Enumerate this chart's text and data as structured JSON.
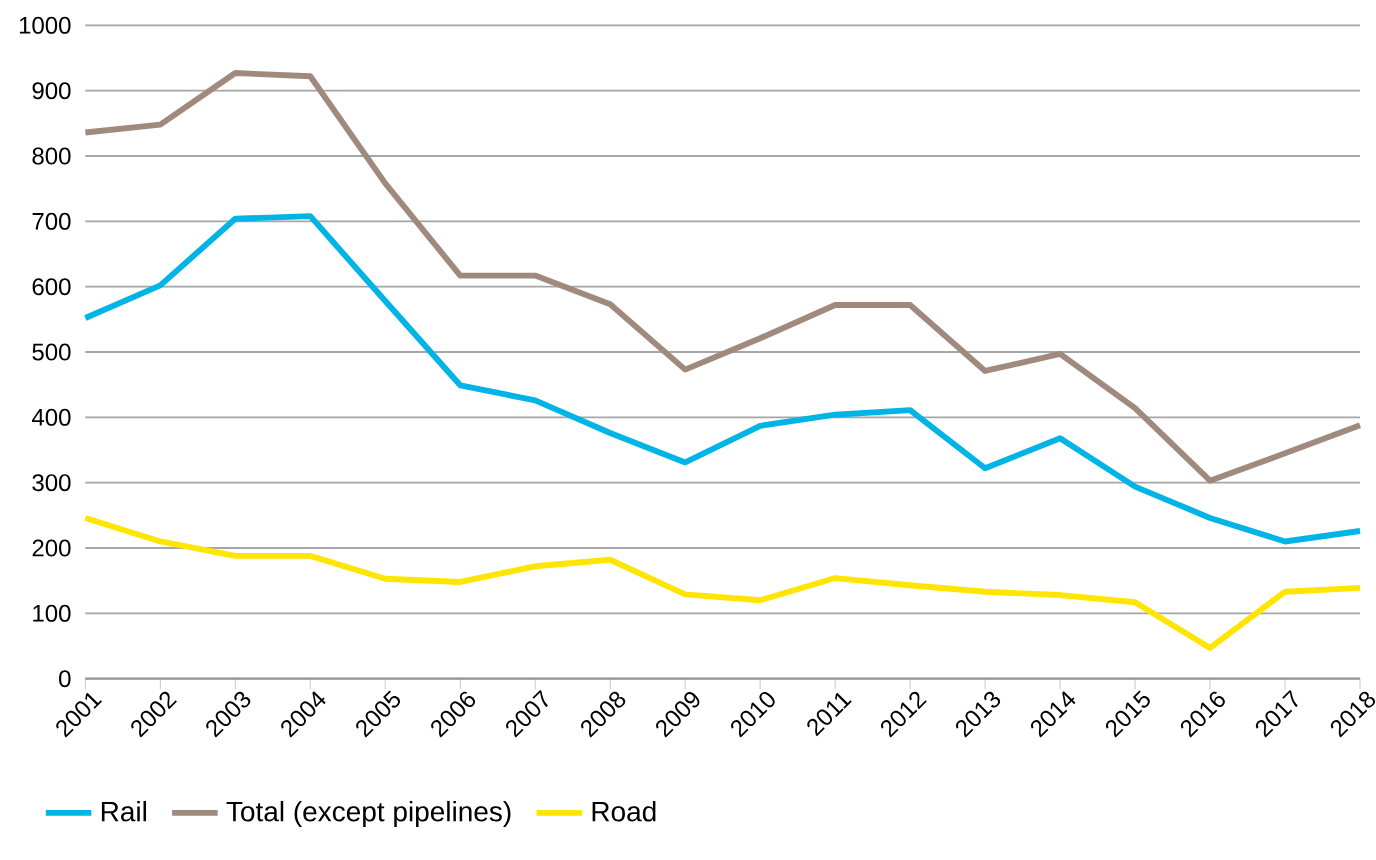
{
  "chart_data": {
    "type": "line",
    "categories": [
      "2001",
      "2002",
      "2003",
      "2004",
      "2005",
      "2006",
      "2007",
      "2008",
      "2009",
      "2010",
      "2011",
      "2012",
      "2013",
      "2014",
      "2015",
      "2016",
      "2017",
      "2018"
    ],
    "series": [
      {
        "name": "Rail",
        "color": "#00b5e6",
        "values": [
          552,
          602,
          704,
          708,
          578,
          449,
          426,
          376,
          331,
          387,
          404,
          411,
          322,
          368,
          294,
          246,
          210,
          226
        ]
      },
      {
        "name": "Total (except pipelines)",
        "color": "#a08a7e",
        "values": [
          836,
          848,
          927,
          922,
          758,
          617,
          617,
          573,
          473,
          521,
          572,
          572,
          471,
          497,
          414,
          303,
          345,
          388
        ]
      },
      {
        "name": "Road",
        "color": "#ffe500",
        "values": [
          246,
          210,
          188,
          188,
          153,
          148,
          172,
          182,
          129,
          120,
          154,
          143,
          133,
          128,
          117,
          47,
          133,
          139
        ]
      }
    ],
    "ylim": [
      0,
      1000
    ],
    "yticks": [
      0,
      100,
      200,
      300,
      400,
      500,
      600,
      700,
      800,
      900,
      1000
    ],
    "grid": "y",
    "legend": "bottom left",
    "marker": "none",
    "line_style": "solid"
  }
}
